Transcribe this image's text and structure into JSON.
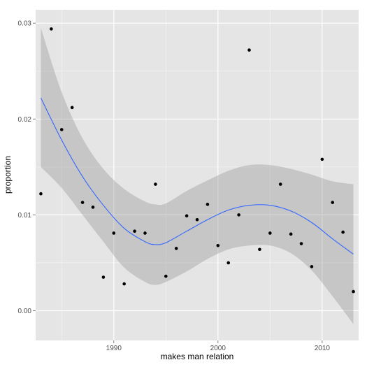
{
  "chart_data": {
    "type": "scatter",
    "title": "",
    "xlabel": "makes man relation",
    "ylabel": "proportion",
    "xlim": [
      1982.5,
      2013.5
    ],
    "ylim": [
      -0.0031,
      0.0314
    ],
    "x_ticks": [
      1990,
      2000,
      2010
    ],
    "x_tick_labels": [
      "1990",
      "2000",
      "2010"
    ],
    "y_ticks": [
      0.0,
      0.01,
      0.02,
      0.03
    ],
    "y_tick_labels": [
      "0.00",
      "0.01",
      "0.02",
      "0.03"
    ],
    "grid": true,
    "colors": {
      "panel_background": "#e5e5e5",
      "grid_major": "#ffffff",
      "grid_minor": "#f2f2f2",
      "points": "#000000",
      "smooth_line": "#3366ff",
      "confidence_band": "#999999"
    },
    "points": [
      {
        "x": 1983,
        "y": 0.0122
      },
      {
        "x": 1984,
        "y": 0.0294
      },
      {
        "x": 1985,
        "y": 0.0189
      },
      {
        "x": 1986,
        "y": 0.0212
      },
      {
        "x": 1987,
        "y": 0.0113
      },
      {
        "x": 1988,
        "y": 0.0108
      },
      {
        "x": 1989,
        "y": 0.0035
      },
      {
        "x": 1990,
        "y": 0.0081
      },
      {
        "x": 1991,
        "y": 0.0028
      },
      {
        "x": 1992,
        "y": 0.0083
      },
      {
        "x": 1993,
        "y": 0.0081
      },
      {
        "x": 1994,
        "y": 0.0132
      },
      {
        "x": 1995,
        "y": 0.0036
      },
      {
        "x": 1996,
        "y": 0.0065
      },
      {
        "x": 1997,
        "y": 0.0099
      },
      {
        "x": 1998,
        "y": 0.0095
      },
      {
        "x": 1999,
        "y": 0.0111
      },
      {
        "x": 2000,
        "y": 0.0068
      },
      {
        "x": 2001,
        "y": 0.005
      },
      {
        "x": 2002,
        "y": 0.01
      },
      {
        "x": 2003,
        "y": 0.0272
      },
      {
        "x": 2004,
        "y": 0.0064
      },
      {
        "x": 2005,
        "y": 0.0081
      },
      {
        "x": 2006,
        "y": 0.0132
      },
      {
        "x": 2007,
        "y": 0.008
      },
      {
        "x": 2008,
        "y": 0.007
      },
      {
        "x": 2009,
        "y": 0.0046
      },
      {
        "x": 2010,
        "y": 0.0158
      },
      {
        "x": 2011,
        "y": 0.0113
      },
      {
        "x": 2012,
        "y": 0.0082
      },
      {
        "x": 2013,
        "y": 0.002
      }
    ],
    "smooth": {
      "x": [
        1983,
        1985,
        1987,
        1989,
        1991,
        1993,
        1994,
        1995,
        1997,
        1999,
        2001,
        2003,
        2005,
        2007,
        2009,
        2011,
        2013
      ],
      "y": [
        0.0222,
        0.0178,
        0.014,
        0.011,
        0.0086,
        0.0072,
        0.0069,
        0.0071,
        0.0083,
        0.0095,
        0.0105,
        0.011,
        0.011,
        0.0104,
        0.0092,
        0.0075,
        0.0059
      ],
      "lower": [
        0.015,
        0.0128,
        0.01,
        0.0072,
        0.0045,
        0.003,
        0.0027,
        0.003,
        0.0041,
        0.0054,
        0.0064,
        0.0068,
        0.0068,
        0.006,
        0.0042,
        0.0015,
        -0.0014
      ],
      "upper": [
        0.0295,
        0.0228,
        0.018,
        0.0148,
        0.0127,
        0.0114,
        0.0111,
        0.0112,
        0.0125,
        0.0136,
        0.0146,
        0.0152,
        0.0152,
        0.0148,
        0.0142,
        0.0135,
        0.0132
      ]
    }
  }
}
